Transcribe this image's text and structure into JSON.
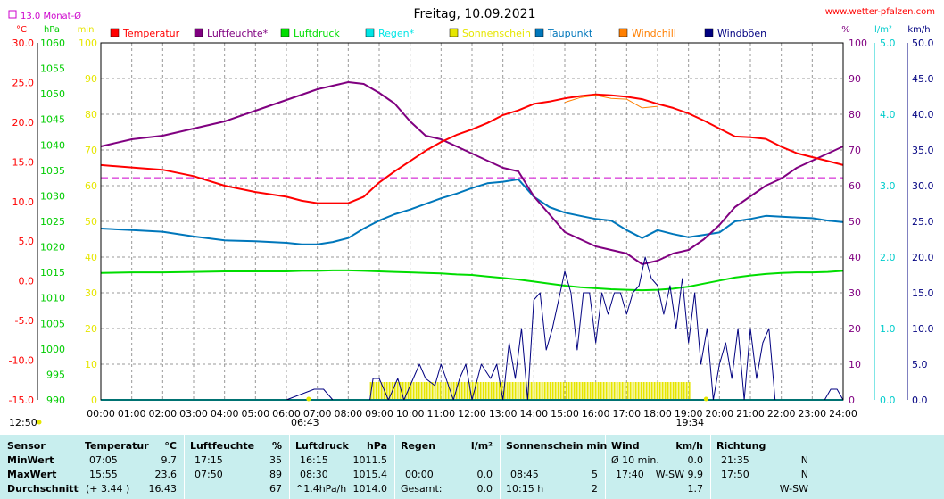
{
  "chart_data": {
    "type": "line",
    "title": "Freitag, 10.09.2021",
    "watermark": "www.wetter-pfalzen.com",
    "monthly_avg_label": "13.0 Monat-Ø",
    "monthly_avg_temp": 13.0,
    "grid": true,
    "legend_position": "top",
    "axes": {
      "temp": {
        "unit": "°C",
        "ticks": [
          "30.0",
          "25.0",
          "20.0",
          "15.0",
          "10.0",
          "5.0",
          "0.0",
          "-5.0",
          "-10.0",
          "-15.0"
        ],
        "range": [
          -15,
          30
        ],
        "color": "#ff0000"
      },
      "pressure": {
        "unit": "hPa",
        "ticks": [
          "1060",
          "1055",
          "1050",
          "1045",
          "1040",
          "1035",
          "1030",
          "1025",
          "1020",
          "1015",
          "1010",
          "1005",
          "1000",
          "995",
          "990"
        ],
        "range": [
          990,
          1060
        ],
        "color": "#00cc00"
      },
      "sun_min": {
        "unit": "min",
        "ticks": [
          "100",
          "90",
          "80",
          "70",
          "60",
          "50",
          "40",
          "30",
          "20",
          "10",
          "0"
        ],
        "range": [
          0,
          100
        ],
        "color": "#e6e600"
      },
      "humidity": {
        "unit": "%",
        "ticks": [
          "100",
          "90",
          "80",
          "70",
          "60",
          "50",
          "40",
          "30",
          "20",
          "10",
          "0"
        ],
        "range": [
          0,
          100
        ],
        "color": "#800080"
      },
      "rain": {
        "unit": "l/m²",
        "ticks": [
          "5.0",
          "4.0",
          "3.0",
          "2.0",
          "1.0",
          "0.0"
        ],
        "range": [
          0,
          5
        ],
        "color": "#00cccc"
      },
      "wind": {
        "unit": "km/h",
        "ticks": [
          "50.0",
          "45.0",
          "40.0",
          "35.0",
          "30.0",
          "25.0",
          "20.0",
          "15.0",
          "10.0",
          "5.0",
          "0.0"
        ],
        "range": [
          0,
          50
        ],
        "color": "#000080"
      }
    },
    "x_ticks": [
      "00:00",
      "01:00",
      "02:00",
      "03:00",
      "04:00",
      "05:00",
      "06:00",
      "07:00",
      "08:00",
      "09:00",
      "10:00",
      "11:00",
      "12:00",
      "13:00",
      "14:00",
      "15:00",
      "16:00",
      "17:00",
      "18:00",
      "19:00",
      "20:00",
      "21:00",
      "22:00",
      "23:00",
      "24:00"
    ],
    "x_range": [
      0,
      24
    ],
    "markers": {
      "noon": "12:50",
      "sunrise": "06:43",
      "sunset": "19:34"
    },
    "legend": [
      {
        "label": "Temperatur",
        "color": "#ff0000"
      },
      {
        "label": "Luftfeuchte*",
        "color": "#800080"
      },
      {
        "label": "Luftdruck",
        "color": "#00dd00"
      },
      {
        "label": "Regen*",
        "color": "#00e5e5"
      },
      {
        "label": "Sonnenschein",
        "color": "#e6e600"
      },
      {
        "label": "Taupunkt",
        "color": "#0077bb"
      },
      {
        "label": "Windchill",
        "color": "#ff7f00"
      },
      {
        "label": "Windböen",
        "color": "#000080"
      }
    ],
    "series": [
      {
        "name": "Temperatur",
        "axis": "temp",
        "color": "#ff0000",
        "x": [
          0,
          1,
          2,
          3,
          4,
          5,
          6,
          6.5,
          7,
          7.5,
          8,
          8.5,
          9,
          9.5,
          10,
          10.5,
          11,
          11.5,
          12,
          12.5,
          13,
          13.5,
          14,
          14.5,
          15,
          15.5,
          16,
          16.5,
          17,
          17.5,
          18,
          18.5,
          19,
          19.5,
          20,
          20.5,
          21,
          21.5,
          22,
          22.5,
          23,
          23.5,
          24
        ],
        "y": [
          14.6,
          14.3,
          14.0,
          13.2,
          12.0,
          11.2,
          10.6,
          10.1,
          9.8,
          9.8,
          9.8,
          10.6,
          12.4,
          13.8,
          15.1,
          16.4,
          17.5,
          18.4,
          19.1,
          19.9,
          20.9,
          21.5,
          22.3,
          22.6,
          23.0,
          23.3,
          23.5,
          23.4,
          23.2,
          22.9,
          22.3,
          21.8,
          21.1,
          20.2,
          19.2,
          18.2,
          18.1,
          17.9,
          16.9,
          16.1,
          15.6,
          15.1,
          14.6
        ]
      },
      {
        "name": "Windchill",
        "axis": "temp",
        "color": "#ff7f00",
        "x": [
          15,
          15.5,
          16,
          16.5,
          17,
          17.5,
          18
        ],
        "y": [
          22.5,
          23.1,
          23.4,
          23.0,
          22.9,
          21.8,
          22.0
        ]
      },
      {
        "name": "Taupunkt",
        "axis": "temp",
        "color": "#0077bb",
        "x": [
          0,
          1,
          2,
          3,
          4,
          5,
          6,
          6.5,
          7,
          7.5,
          8,
          8.5,
          9,
          9.5,
          10,
          10.5,
          11,
          11.5,
          12,
          12.5,
          13,
          13.5,
          14,
          14.5,
          15,
          15.5,
          16,
          16.5,
          17,
          17.5,
          18,
          18.5,
          19,
          19.5,
          20,
          20.5,
          21,
          21.5,
          22,
          22.5,
          23,
          23.5,
          24
        ],
        "y": [
          6.6,
          6.4,
          6.2,
          5.6,
          5.1,
          5.0,
          4.8,
          4.6,
          4.6,
          4.9,
          5.4,
          6.6,
          7.6,
          8.4,
          9.0,
          9.7,
          10.4,
          11.0,
          11.7,
          12.3,
          12.5,
          12.8,
          10.6,
          9.3,
          8.6,
          8.2,
          7.8,
          7.6,
          6.4,
          5.4,
          6.4,
          5.9,
          5.5,
          5.8,
          6.1,
          7.5,
          7.8,
          8.2,
          8.1,
          8.0,
          7.9,
          7.6,
          7.4
        ]
      },
      {
        "name": "Luftfeuchte*",
        "axis": "humidity",
        "color": "#800080",
        "x": [
          0,
          1,
          2,
          3,
          4,
          5,
          6,
          6.5,
          7,
          7.5,
          8,
          8.5,
          9,
          9.5,
          10,
          10.5,
          11,
          11.5,
          12,
          12.5,
          13,
          13.5,
          14,
          14.5,
          15,
          15.5,
          16,
          16.5,
          17,
          17.5,
          18,
          18.5,
          19,
          19.5,
          20,
          20.5,
          21,
          21.5,
          22,
          22.5,
          23,
          23.5,
          24
        ],
        "y": [
          71,
          73,
          74,
          76,
          78,
          81,
          84,
          85.5,
          87,
          88,
          89,
          88.5,
          86,
          83,
          78,
          74,
          73,
          71,
          69,
          67,
          65,
          64,
          57,
          52,
          47,
          45,
          43,
          42,
          41,
          38,
          39,
          41,
          42,
          45,
          49,
          54,
          57,
          60,
          62,
          65,
          67,
          69,
          71
        ]
      },
      {
        "name": "Luftdruck",
        "axis": "pressure",
        "color": "#00dd00",
        "x": [
          0,
          1,
          2,
          3,
          4,
          5,
          6,
          6.5,
          7,
          7.5,
          8,
          8.5,
          9,
          9.5,
          10,
          10.5,
          11,
          11.5,
          12,
          12.5,
          13,
          13.5,
          14,
          14.5,
          15,
          15.5,
          16,
          16.5,
          17,
          17.5,
          18,
          18.5,
          19,
          19.5,
          20,
          20.5,
          21,
          21.5,
          22,
          22.5,
          23,
          23.5,
          24
        ],
        "y": [
          1014.9,
          1015.0,
          1015.0,
          1015.1,
          1015.2,
          1015.2,
          1015.2,
          1015.3,
          1015.3,
          1015.4,
          1015.4,
          1015.3,
          1015.2,
          1015.1,
          1015.0,
          1014.9,
          1014.8,
          1014.6,
          1014.5,
          1014.2,
          1013.9,
          1013.6,
          1013.2,
          1012.8,
          1012.4,
          1012.1,
          1011.9,
          1011.7,
          1011.6,
          1011.5,
          1011.6,
          1011.8,
          1012.2,
          1012.8,
          1013.4,
          1014.0,
          1014.4,
          1014.7,
          1014.9,
          1015.0,
          1015.0,
          1015.1,
          1015.3
        ]
      },
      {
        "name": "Windböen",
        "axis": "wind",
        "color": "#000080",
        "x": [
          0,
          6,
          6.9,
          7.2,
          7.5,
          8,
          8.7,
          8.8,
          9,
          9.3,
          9.6,
          9.8,
          10.0,
          10.3,
          10.5,
          10.8,
          11.0,
          11.4,
          11.6,
          11.8,
          12.0,
          12.3,
          12.6,
          12.8,
          13.0,
          13.2,
          13.4,
          13.6,
          13.8,
          14.0,
          14.2,
          14.4,
          14.6,
          14.8,
          15.0,
          15.2,
          15.4,
          15.6,
          15.8,
          16.0,
          16.2,
          16.4,
          16.6,
          16.8,
          17.0,
          17.2,
          17.4,
          17.6,
          17.8,
          18.0,
          18.2,
          18.4,
          18.6,
          18.8,
          19.0,
          19.2,
          19.4,
          19.6,
          19.8,
          20.0,
          20.2,
          20.4,
          20.6,
          20.8,
          21.0,
          21.2,
          21.4,
          21.6,
          21.8,
          22.0,
          22.4,
          22.8,
          23.0,
          23.4,
          23.6,
          23.8,
          24
        ],
        "y": [
          0,
          0,
          1.5,
          1.5,
          0,
          0,
          0,
          3,
          3,
          0,
          3,
          0,
          2,
          5,
          3,
          2,
          5,
          0,
          3,
          5,
          0,
          5,
          3,
          5,
          0,
          8,
          3,
          10,
          0,
          14,
          15,
          7,
          10,
          14,
          18,
          15,
          7,
          15,
          15,
          8,
          15,
          12,
          15,
          15,
          12,
          15,
          16,
          20,
          17,
          16,
          12,
          16,
          10,
          17,
          8,
          15,
          5,
          10,
          0,
          5,
          8,
          3,
          10,
          0,
          10,
          3,
          8,
          10,
          0,
          0,
          0,
          0,
          0,
          0,
          1.5,
          1.5,
          0
        ]
      },
      {
        "name": "Sonnenschein",
        "axis": "sun_min",
        "color": "#e6e600",
        "x": [
          8.7,
          19.0
        ],
        "y": [
          5,
          5
        ]
      },
      {
        "name": "Regen*",
        "axis": "rain",
        "color": "#00e5e5",
        "x": [
          0,
          24
        ],
        "y": [
          0,
          0
        ]
      }
    ]
  },
  "stats": {
    "headers": {
      "sensor": "Sensor",
      "temp": "Temperatur",
      "temp_unit": "°C",
      "hum": "Luftfeuchte",
      "hum_unit": "%",
      "press": "Luftdruck",
      "press_unit": "hPa",
      "rain": "Regen",
      "rain_unit": "l/m²",
      "sun": "Sonnenschein min",
      "wind": "Wind",
      "wind_unit": "km/h",
      "dir": "Richtung"
    },
    "min": {
      "label": "MinWert",
      "temp_time": "07:05",
      "temp_val": "9.7",
      "hum_time": "17:15",
      "hum_val": "35",
      "press_time": "16:15",
      "press_val": "1011.5",
      "rain_time": "",
      "rain_val": "",
      "sun_time": "",
      "sun_val": "",
      "wind_time": "Ø 10 min.",
      "wind_val": "0.0",
      "dir_time": "21:35",
      "dir_val": "N"
    },
    "max": {
      "label": "MaxWert",
      "temp_time": "15:55",
      "temp_val": "23.6",
      "hum_time": "07:50",
      "hum_val": "89",
      "press_time": "08:30",
      "press_val": "1015.4",
      "rain_time": "00:00",
      "rain_val": "0.0",
      "sun_time": "08:45",
      "sun_val": "5",
      "wind_time": "17:40",
      "wind_val": "W-SW 9.9",
      "dir_time": "17:50",
      "dir_val": "N"
    },
    "avg": {
      "label": "Durchschnitt",
      "temp_time": "(+ 3.44 )",
      "temp_val": "16.43",
      "hum_time": "",
      "hum_val": "67",
      "press_time": "^1.4hPa/h",
      "press_val": "1014.0",
      "rain_time": "Gesamt:",
      "rain_val": "0.0",
      "sun_time": "10:15 h",
      "sun_val": "2",
      "wind_time": "",
      "wind_val": "1.7",
      "dir_time": "",
      "dir_val": "W-SW"
    }
  }
}
